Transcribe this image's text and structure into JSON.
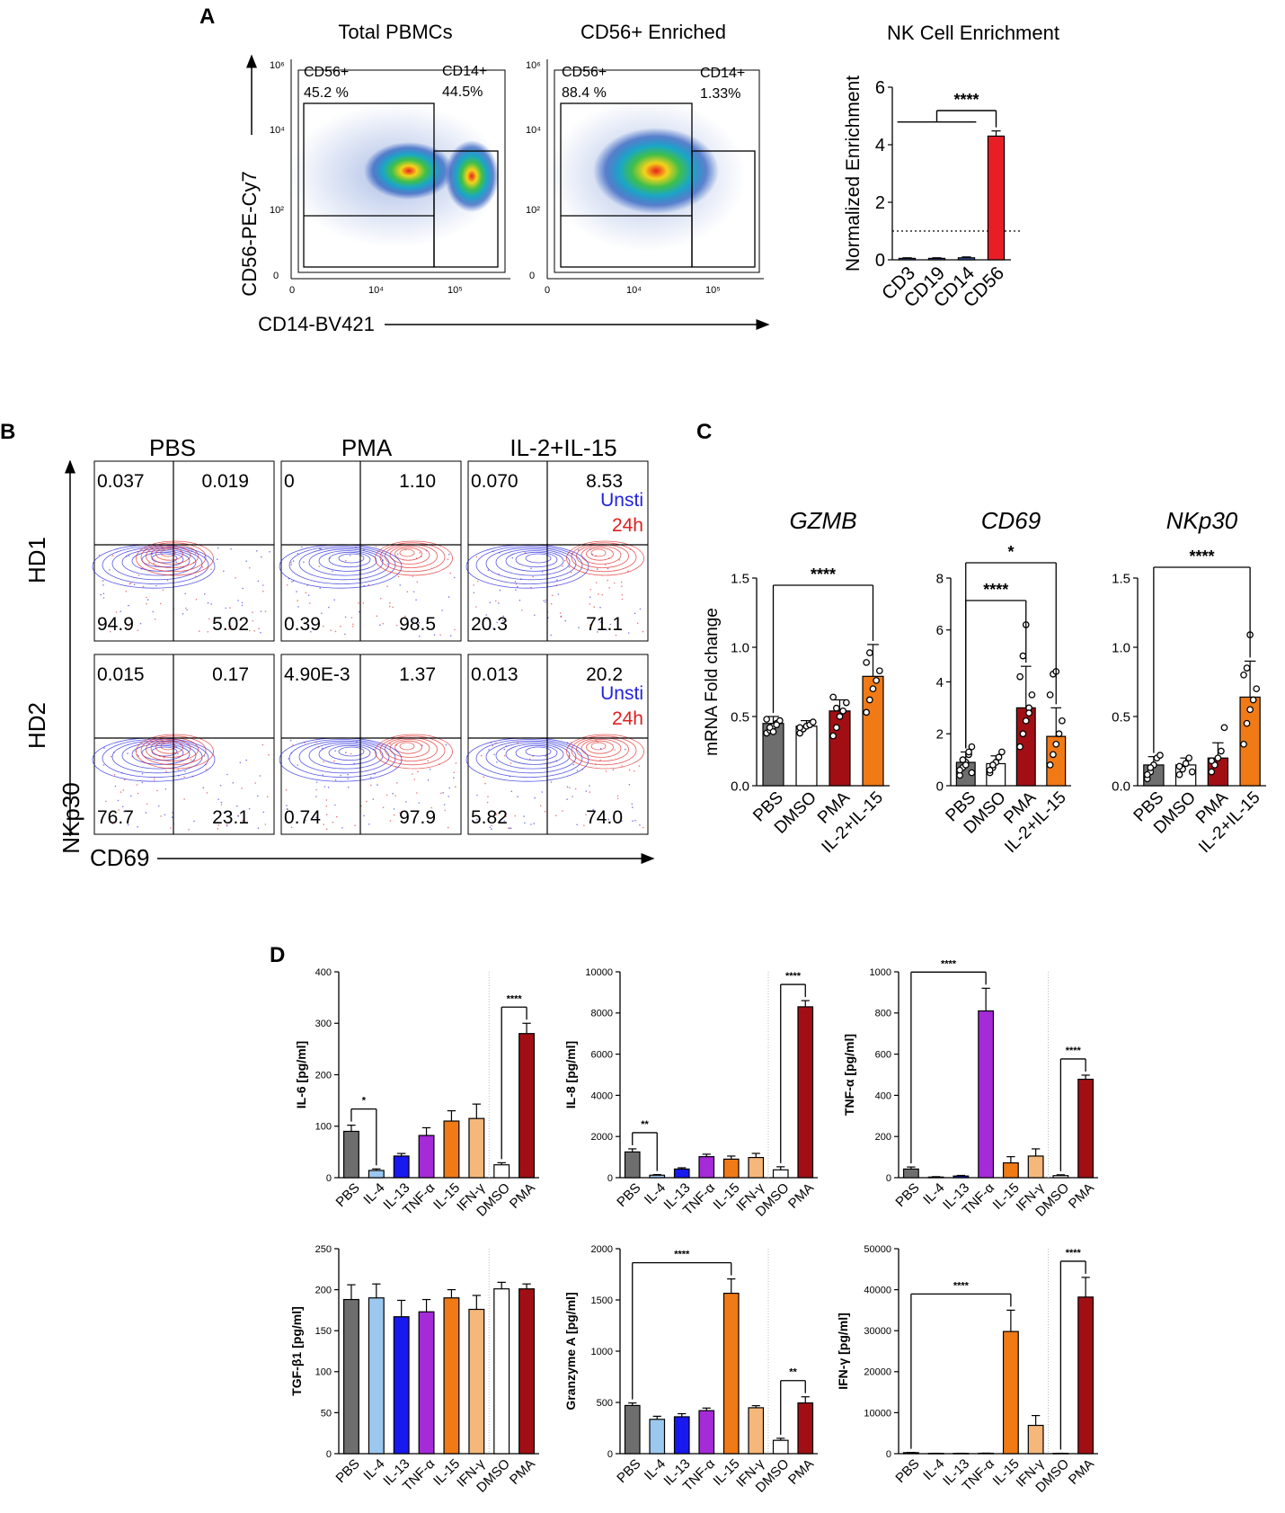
{
  "colors": {
    "black": "#000000",
    "grey": "#6e6e6e",
    "white": "#ffffff",
    "darkred": "#a10f14",
    "orange": "#f07a16",
    "lightblue": "#9cc7ef",
    "blue": "#1818f0",
    "purple": "#a52ad8",
    "peach": "#f6b77a",
    "red": "#e81e25",
    "unsti": "#2222dd",
    "h24": "#e02020"
  },
  "panels": {
    "A": "A",
    "B": "B",
    "C": "C",
    "D": "D"
  },
  "flow_a": {
    "plot1_title": "Total PBMCs",
    "plot2_title": "CD56+ Enriched",
    "ylabel": "CD56-PE-Cy7",
    "xlabel": "CD14-BV421",
    "y_ticks": [
      "10⁶",
      "10⁴",
      "10²",
      "0"
    ],
    "x_ticks": [
      "0",
      "10⁴",
      "10⁵"
    ],
    "plot1_gates": {
      "cd56_name": "CD56+",
      "cd56_pct": "45.2 %",
      "cd14_name": "CD14+",
      "cd14_pct": "44.5%"
    },
    "plot2_gates": {
      "cd56_name": "CD56+",
      "cd56_pct": "88.4 %",
      "cd14_name": "CD14+",
      "cd14_pct": "1.33%"
    }
  },
  "flow_b": {
    "col_titles": [
      "PBS",
      "PMA",
      "IL-2+IL-15"
    ],
    "row_titles": [
      "HD1",
      "HD2"
    ],
    "ylabel": "NKp30",
    "xlabel": "CD69",
    "legend_unsti": "Unsti",
    "legend_24h": "24h",
    "quadrants": [
      [
        "0.037",
        "0.019",
        "94.9",
        "5.02"
      ],
      [
        "0",
        "1.10",
        "0.39",
        "98.5"
      ],
      [
        "0.070",
        "8.53",
        "20.3",
        "71.1"
      ],
      [
        "0.015",
        "0.17",
        "76.7",
        "23.1"
      ],
      [
        "4.90E-3",
        "1.37",
        "0.74",
        "97.9"
      ],
      [
        "0.013",
        "20.2",
        "5.82",
        "74.0"
      ]
    ]
  },
  "chart_data": [
    {
      "id": "A-enrichment",
      "type": "bar",
      "title": "NK Cell Enrichment",
      "ylabel": "Normalized Enrichment",
      "xlabel": "",
      "categories": [
        "CD3",
        "CD19",
        "CD14",
        "CD56"
      ],
      "values": [
        0.05,
        0.05,
        0.07,
        4.3
      ],
      "errors": [
        0.02,
        0.02,
        0.03,
        0.18
      ],
      "colors": [
        "#3b5fc0",
        "#3b5fc0",
        "#3b5fc0",
        "#e81e25"
      ],
      "ylim": [
        0,
        6
      ],
      "yticks": [
        0,
        2,
        4,
        6
      ],
      "ytick_labels": [
        "0",
        "2",
        "4",
        "6"
      ],
      "reference_line": 1,
      "significance": [
        {
          "label": "****",
          "group_from": 0,
          "group_to": 2,
          "to": 3
        }
      ]
    },
    {
      "id": "C-GZMB",
      "type": "bar",
      "title": "GZMB",
      "ylabel": "mRNA Fold change",
      "categories": [
        "PBS",
        "DMSO",
        "PMA",
        "IL-2+IL-15"
      ],
      "values": [
        0.45,
        0.43,
        0.54,
        0.79
      ],
      "errors": [
        0.05,
        0.04,
        0.08,
        0.23
      ],
      "colors": [
        "#6e6e6e",
        "#ffffff",
        "#a10f14",
        "#f07a16"
      ],
      "points": [
        [
          0.38,
          0.4,
          0.43,
          0.45,
          0.47,
          0.48,
          0.42,
          0.39,
          0.44
        ],
        [
          0.38,
          0.41,
          0.43,
          0.44,
          0.46,
          0.42
        ],
        [
          0.36,
          0.42,
          0.5,
          0.54,
          0.6,
          0.64,
          0.56
        ],
        [
          0.53,
          0.62,
          0.7,
          0.76,
          0.83,
          0.89,
          0.96
        ]
      ],
      "ylim": [
        0,
        1.5
      ],
      "yticks": [
        0,
        0.5,
        1,
        1.5
      ],
      "ytick_labels": [
        "0.0",
        "0.5",
        "1.0",
        "1.5"
      ],
      "significance": [
        {
          "label": "****",
          "from": 0,
          "to": 3
        }
      ]
    },
    {
      "id": "C-CD69",
      "type": "bar",
      "title": "CD69",
      "ylabel": "",
      "categories": [
        "PBS",
        "DMSO",
        "PMA",
        "IL-2+IL-15"
      ],
      "values": [
        0.9,
        0.85,
        3.0,
        1.9
      ],
      "errors": [
        0.4,
        0.3,
        1.6,
        1.1
      ],
      "colors": [
        "#6e6e6e",
        "#ffffff",
        "#a10f14",
        "#f07a16"
      ],
      "points": [
        [
          0.4,
          0.7,
          0.9,
          1.2,
          1.5,
          0.6,
          1.0,
          0.8,
          1.3,
          0.5
        ],
        [
          0.5,
          0.7,
          0.9,
          1.1,
          1.3,
          0.6,
          0.8
        ],
        [
          1.5,
          2.0,
          2.5,
          3.0,
          3.5,
          4.2,
          5.0,
          6.2,
          2.8
        ],
        [
          0.8,
          1.2,
          1.6,
          2.0,
          2.5,
          3.5,
          4.3,
          4.4
        ]
      ],
      "ylim": [
        0,
        8
      ],
      "yticks": [
        0,
        2,
        4,
        6,
        8
      ],
      "ytick_labels": [
        "0",
        "2",
        "4",
        "6",
        "8"
      ],
      "significance": [
        {
          "label": "****",
          "from": 0,
          "to": 2
        },
        {
          "label": "*",
          "from": 0,
          "to": 3
        }
      ]
    },
    {
      "id": "C-NKp30",
      "type": "bar",
      "title": "NKp30",
      "ylabel": "",
      "categories": [
        "PBS",
        "DMSO",
        "PMA",
        "IL-2+IL-15"
      ],
      "values": [
        0.15,
        0.15,
        0.2,
        0.64
      ],
      "errors": [
        0.06,
        0.05,
        0.11,
        0.26
      ],
      "colors": [
        "#6e6e6e",
        "#ffffff",
        "#a10f14",
        "#f07a16"
      ],
      "points": [
        [
          0.05,
          0.1,
          0.15,
          0.2,
          0.22,
          0.08,
          0.13
        ],
        [
          0.08,
          0.12,
          0.16,
          0.2,
          0.1,
          0.14
        ],
        [
          0.1,
          0.15,
          0.2,
          0.25,
          0.42,
          0.18
        ],
        [
          0.3,
          0.45,
          0.55,
          0.62,
          0.7,
          0.8,
          0.85,
          1.09
        ]
      ],
      "ylim": [
        0,
        1.5
      ],
      "yticks": [
        0,
        0.5,
        1,
        1.5
      ],
      "ytick_labels": [
        "0.0",
        "0.5",
        "1.0",
        "1.5"
      ],
      "significance": [
        {
          "label": "****",
          "from": 0,
          "to": 3
        }
      ]
    },
    {
      "id": "D-IL6",
      "type": "bar",
      "ylabel": "IL-6 [pg/ml]",
      "categories": [
        "PBS",
        "IL-4",
        "IL-13",
        "TNF-α",
        "IL-15",
        "IFN-γ",
        "DMSO",
        "PMA"
      ],
      "values": [
        90,
        14,
        42,
        82,
        110,
        115,
        25,
        280
      ],
      "errors": [
        12,
        3,
        5,
        15,
        20,
        28,
        4,
        20
      ],
      "colors": [
        "#6e6e6e",
        "#9cc7ef",
        "#1818f0",
        "#a52ad8",
        "#f07a16",
        "#f6b77a",
        "#ffffff",
        "#a10f14"
      ],
      "ylim": [
        0,
        400
      ],
      "yticks": [
        0,
        100,
        200,
        300,
        400
      ],
      "ytick_labels": [
        "0",
        "100",
        "200",
        "300",
        "400"
      ],
      "significance": [
        {
          "label": "*",
          "from": 0,
          "to": 1
        },
        {
          "label": "****",
          "from": 6,
          "to": 7
        }
      ]
    },
    {
      "id": "D-IL8",
      "type": "bar",
      "ylabel": "IL-8 [pg/ml]",
      "categories": [
        "PBS",
        "IL-4",
        "IL-13",
        "TNF-α",
        "IL-15",
        "IFN-γ",
        "DMSO",
        "PMA"
      ],
      "values": [
        1250,
        120,
        420,
        1020,
        900,
        980,
        380,
        8300
      ],
      "errors": [
        150,
        30,
        60,
        120,
        150,
        200,
        150,
        300
      ],
      "colors": [
        "#6e6e6e",
        "#9cc7ef",
        "#1818f0",
        "#a52ad8",
        "#f07a16",
        "#f6b77a",
        "#ffffff",
        "#a10f14"
      ],
      "ylim": [
        0,
        10000
      ],
      "yticks": [
        0,
        2000,
        4000,
        6000,
        8000,
        10000
      ],
      "ytick_labels": [
        "0",
        "2000",
        "4000",
        "6000",
        "8000",
        "10000"
      ],
      "significance": [
        {
          "label": "**",
          "from": 0,
          "to": 1
        },
        {
          "label": "****",
          "from": 6,
          "to": 7
        }
      ]
    },
    {
      "id": "D-TNFa",
      "type": "bar",
      "ylabel": "TNF-α [pg/ml]",
      "categories": [
        "PBS",
        "IL-4",
        "IL-13",
        "TNF-α",
        "IL-15",
        "IFN-γ",
        "DMSO",
        "PMA"
      ],
      "values": [
        42,
        3,
        8,
        810,
        72,
        105,
        10,
        478
      ],
      "errors": [
        10,
        2,
        3,
        110,
        30,
        35,
        4,
        20
      ],
      "colors": [
        "#6e6e6e",
        "#9cc7ef",
        "#1818f0",
        "#a52ad8",
        "#f07a16",
        "#f6b77a",
        "#ffffff",
        "#a10f14"
      ],
      "ylim": [
        0,
        1000
      ],
      "yticks": [
        0,
        200,
        400,
        600,
        800,
        1000
      ],
      "ytick_labels": [
        "0",
        "200",
        "400",
        "600",
        "800",
        "1000"
      ],
      "significance": [
        {
          "label": "****",
          "from": 0,
          "to": 3
        },
        {
          "label": "****",
          "from": 6,
          "to": 7
        }
      ]
    },
    {
      "id": "D-TGFb1",
      "type": "bar",
      "ylabel": "TGF-β1 [pg/ml]",
      "categories": [
        "PBS",
        "IL-4",
        "IL-13",
        "TNF-α",
        "IL-15",
        "IFN-γ",
        "DMSO",
        "PMA"
      ],
      "values": [
        188,
        190,
        167,
        173,
        190,
        176,
        201,
        201
      ],
      "errors": [
        18,
        17,
        20,
        15,
        10,
        17,
        8,
        6
      ],
      "colors": [
        "#6e6e6e",
        "#9cc7ef",
        "#1818f0",
        "#a52ad8",
        "#f07a16",
        "#f6b77a",
        "#ffffff",
        "#a10f14"
      ],
      "ylim": [
        0,
        250
      ],
      "yticks": [
        0,
        50,
        100,
        150,
        200,
        250
      ],
      "ytick_labels": [
        "0",
        "50",
        "100",
        "150",
        "200",
        "250"
      ],
      "significance": []
    },
    {
      "id": "D-GranzymeA",
      "type": "bar",
      "ylabel": "Granzyme A [pg/ml]",
      "categories": [
        "PBS",
        "IL-4",
        "IL-13",
        "TNF-α",
        "IL-15",
        "IFN-γ",
        "DMSO",
        "PMA"
      ],
      "values": [
        470,
        335,
        360,
        420,
        1565,
        448,
        130,
        495
      ],
      "errors": [
        25,
        30,
        30,
        25,
        140,
        20,
        20,
        60
      ],
      "colors": [
        "#6e6e6e",
        "#9cc7ef",
        "#1818f0",
        "#a52ad8",
        "#f07a16",
        "#f6b77a",
        "#ffffff",
        "#a10f14"
      ],
      "ylim": [
        0,
        2000
      ],
      "yticks": [
        0,
        500,
        1000,
        1500,
        2000
      ],
      "ytick_labels": [
        "0",
        "500",
        "1000",
        "1500",
        "2000"
      ],
      "significance": [
        {
          "label": "****",
          "from": 0,
          "to": 4
        },
        {
          "label": "**",
          "from": 6,
          "to": 7
        }
      ]
    },
    {
      "id": "D-IFNg",
      "type": "bar",
      "ylabel": "IFN-γ [pg/ml]",
      "categories": [
        "PBS",
        "IL-4",
        "IL-13",
        "TNF-α",
        "IL-15",
        "IFN-γ",
        "DMSO",
        "PMA"
      ],
      "values": [
        250,
        80,
        80,
        100,
        29800,
        6900,
        80,
        38200
      ],
      "errors": [
        60,
        20,
        20,
        30,
        5200,
        2400,
        20,
        4800
      ],
      "colors": [
        "#6e6e6e",
        "#9cc7ef",
        "#1818f0",
        "#a52ad8",
        "#f07a16",
        "#f6b77a",
        "#ffffff",
        "#a10f14"
      ],
      "ylim": [
        0,
        50000
      ],
      "yticks": [
        0,
        10000,
        20000,
        30000,
        40000,
        50000
      ],
      "ytick_labels": [
        "0",
        "10000",
        "20000",
        "30000",
        "40000",
        "50000"
      ],
      "significance": [
        {
          "label": "****",
          "from": 0,
          "to": 4
        },
        {
          "label": "****",
          "from": 6,
          "to": 7
        }
      ]
    }
  ]
}
